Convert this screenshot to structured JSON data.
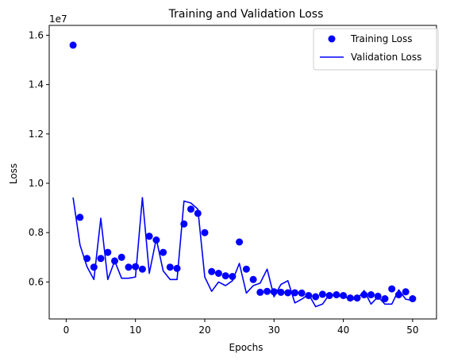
{
  "chart_data": {
    "type": "line",
    "title": "Training and Validation Loss",
    "xlabel": "Epochs",
    "ylabel": "Loss",
    "y_offset_label": "1e7",
    "xlim": [
      -2.45,
      53.45
    ],
    "ylim": [
      4.5,
      16.4
    ],
    "x_ticks": [
      0,
      10,
      20,
      30,
      40,
      50
    ],
    "x_tick_labels": [
      "0",
      "10",
      "20",
      "30",
      "40",
      "50"
    ],
    "y_ticks": [
      6,
      8,
      10,
      12,
      14,
      16
    ],
    "y_tick_labels": [
      "0.6",
      "0.8",
      "1.0",
      "1.2",
      "1.4",
      "1.6"
    ],
    "legend_position": "top-right",
    "grid": false,
    "series": [
      {
        "name": "Training Loss",
        "style": "points",
        "color": "#0000ff",
        "x": [
          1,
          2,
          3,
          4,
          5,
          6,
          7,
          8,
          9,
          10,
          11,
          12,
          13,
          14,
          15,
          16,
          17,
          18,
          19,
          20,
          21,
          22,
          23,
          24,
          25,
          26,
          27,
          28,
          29,
          30,
          31,
          32,
          33,
          34,
          35,
          36,
          37,
          38,
          39,
          40,
          41,
          42,
          43,
          44,
          45,
          46,
          47,
          48,
          49,
          50
        ],
        "values": [
          15.6,
          8.62,
          6.95,
          6.6,
          6.95,
          7.2,
          6.85,
          7.0,
          6.6,
          6.62,
          6.52,
          7.85,
          7.7,
          7.2,
          6.6,
          6.55,
          8.35,
          8.95,
          8.78,
          8.0,
          6.42,
          6.35,
          6.25,
          6.22,
          7.62,
          6.52,
          6.1,
          5.58,
          5.62,
          5.6,
          5.58,
          5.56,
          5.56,
          5.55,
          5.45,
          5.4,
          5.5,
          5.45,
          5.48,
          5.45,
          5.35,
          5.35,
          5.48,
          5.48,
          5.42,
          5.32,
          5.72,
          5.48,
          5.6,
          5.32
        ]
      },
      {
        "name": "Validation Loss",
        "style": "line",
        "color": "#0000ff",
        "x": [
          1,
          2,
          3,
          4,
          5,
          6,
          7,
          8,
          9,
          10,
          11,
          12,
          13,
          14,
          15,
          16,
          17,
          18,
          19,
          20,
          21,
          22,
          23,
          24,
          25,
          26,
          27,
          28,
          29,
          30,
          31,
          32,
          33,
          34,
          35,
          36,
          37,
          38,
          39,
          40,
          41,
          42,
          43,
          44,
          45,
          46,
          47,
          48,
          49,
          50
        ],
        "values": [
          9.42,
          7.5,
          6.62,
          6.1,
          8.58,
          6.1,
          6.85,
          6.15,
          6.15,
          6.2,
          9.42,
          6.35,
          7.75,
          6.45,
          6.1,
          6.1,
          9.28,
          9.2,
          8.95,
          6.2,
          5.62,
          6.0,
          5.85,
          6.05,
          6.75,
          5.55,
          5.85,
          5.95,
          6.52,
          5.4,
          5.9,
          6.05,
          5.15,
          5.3,
          5.5,
          5.0,
          5.1,
          5.5,
          5.42,
          5.42,
          5.3,
          5.3,
          5.65,
          5.1,
          5.4,
          5.1,
          5.1,
          5.68,
          5.3,
          5.25
        ]
      }
    ]
  }
}
